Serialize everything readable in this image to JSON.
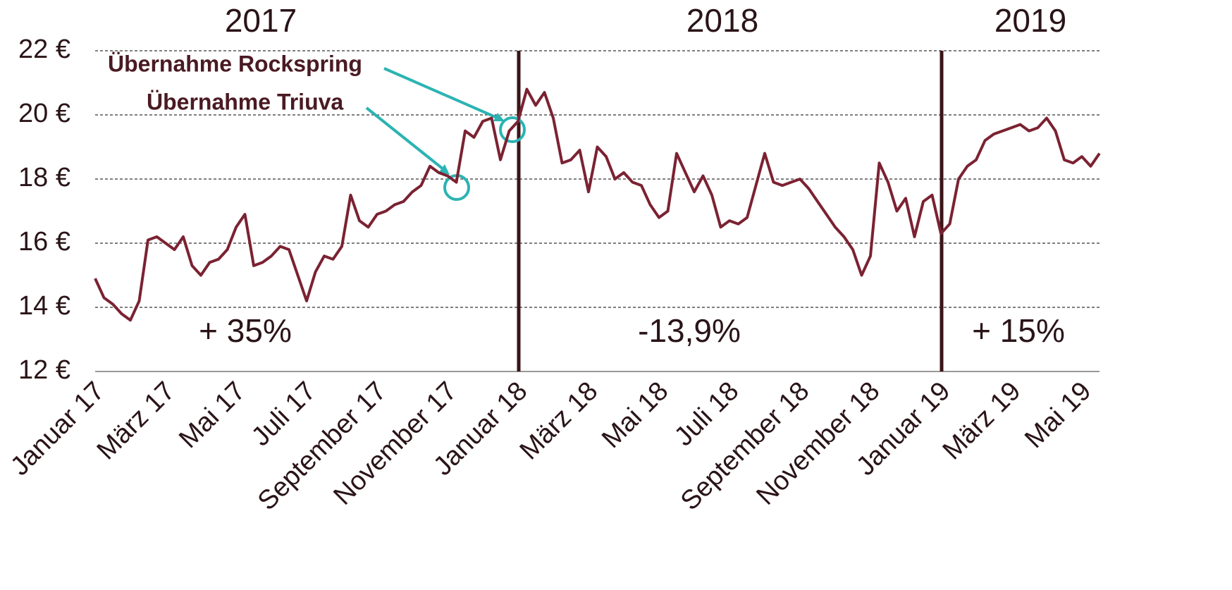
{
  "chart_data": {
    "type": "line",
    "categories": [
      "Januar 17",
      null,
      null,
      null,
      null,
      null,
      null,
      null,
      "März 17",
      null,
      null,
      null,
      null,
      null,
      null,
      null,
      "Mai 17",
      null,
      null,
      null,
      null,
      null,
      null,
      null,
      "Juli 17",
      null,
      null,
      null,
      null,
      null,
      null,
      null,
      "September 17",
      null,
      null,
      null,
      null,
      null,
      null,
      null,
      "November 17",
      null,
      null,
      null,
      null,
      null,
      null,
      null,
      "Januar 18",
      null,
      null,
      null,
      null,
      null,
      null,
      null,
      "März 18",
      null,
      null,
      null,
      null,
      null,
      null,
      null,
      "Mai 18",
      null,
      null,
      null,
      null,
      null,
      null,
      null,
      "Juli 18",
      null,
      null,
      null,
      null,
      null,
      null,
      null,
      "September 18",
      null,
      null,
      null,
      null,
      null,
      null,
      null,
      "November 18",
      null,
      null,
      null,
      null,
      null,
      null,
      null,
      "Januar 19",
      null,
      null,
      null,
      null,
      null,
      null,
      null,
      "März 19",
      null,
      null,
      null,
      null,
      null,
      null,
      null,
      "Mai 19",
      null,
      null
    ],
    "series": [
      {
        "color": "#7b2232",
        "values": [
          14.9,
          14.3,
          14.1,
          13.8,
          13.6,
          14.2,
          16.1,
          16.2,
          16.0,
          15.8,
          16.2,
          15.3,
          15.0,
          15.4,
          15.5,
          15.8,
          16.5,
          16.9,
          15.3,
          15.4,
          15.6,
          15.9,
          15.8,
          15.0,
          14.2,
          15.1,
          15.6,
          15.5,
          15.9,
          17.5,
          16.7,
          16.5,
          16.9,
          17.0,
          17.2,
          17.3,
          17.6,
          17.8,
          18.4,
          18.2,
          18.1,
          17.9,
          19.5,
          19.3,
          19.8,
          19.9,
          18.6,
          19.5,
          19.8,
          20.8,
          20.3,
          20.7,
          19.9,
          18.5,
          18.6,
          18.9,
          17.6,
          19.0,
          18.7,
          18.0,
          18.2,
          17.9,
          17.8,
          17.2,
          16.8,
          17.0,
          18.8,
          18.2,
          17.6,
          18.1,
          17.5,
          16.5,
          16.7,
          16.6,
          16.8,
          17.8,
          18.8,
          17.9,
          17.8,
          17.9,
          18.0,
          17.7,
          17.3,
          16.9,
          16.5,
          16.2,
          15.8,
          15.0,
          15.6,
          18.5,
          17.9,
          17.0,
          17.4,
          16.2,
          17.3,
          17.5,
          16.3,
          16.6,
          18.0,
          18.4,
          18.6,
          19.2,
          19.4,
          19.5,
          19.6,
          19.7,
          19.5,
          19.6,
          19.9,
          19.5,
          18.6,
          18.5,
          18.7,
          18.4,
          18.8
        ]
      }
    ],
    "ylim": [
      12,
      22
    ],
    "yticks": [
      {
        "value": 12,
        "label": "12 €"
      },
      {
        "value": 14,
        "label": "14 €"
      },
      {
        "value": 16,
        "label": "16 €"
      },
      {
        "value": 18,
        "label": "18 €"
      },
      {
        "value": 20,
        "label": "20 €"
      },
      {
        "value": 22,
        "label": "22 €"
      }
    ],
    "grid": true,
    "period_labels": [
      "2017",
      "2018",
      "2019"
    ],
    "period_changes": [
      "+ 35%",
      "-13,9%",
      "+ 15%"
    ],
    "annotations": [
      "Übernahme Rockspring",
      "Übernahme Triuva"
    ]
  }
}
